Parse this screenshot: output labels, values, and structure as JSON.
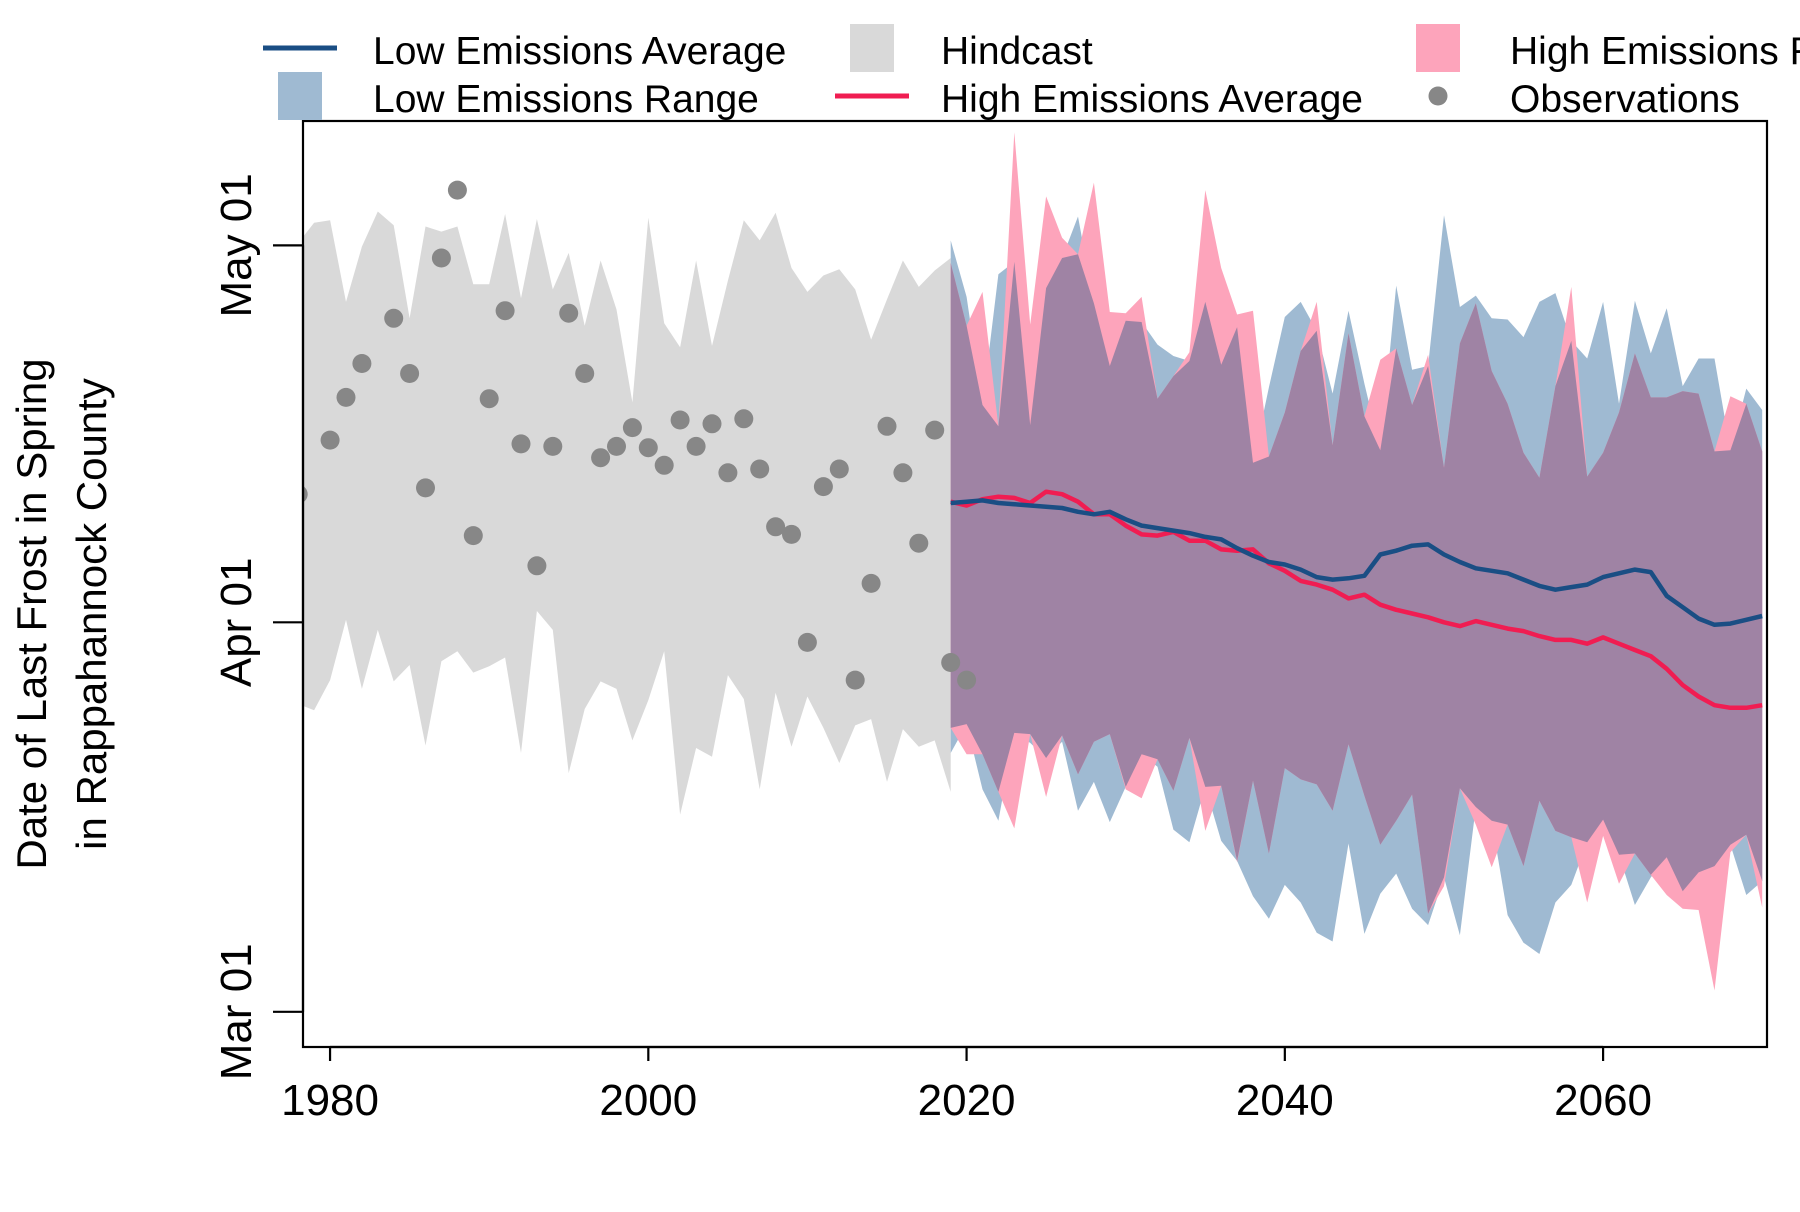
{
  "chart_data": {
    "type": "area",
    "title": "",
    "ylabel": [
      "Date of Last Frost in Spring",
      "in Rappahannock County"
    ],
    "xlabel": "",
    "xlim": [
      1978.3,
      2070.3
    ],
    "ylim": [
      57.2,
      130.9
    ],
    "x_ticks": [
      1980,
      2000,
      2020,
      2040,
      2060
    ],
    "x_tick_labels": [
      "1980",
      "2000",
      "2020",
      "2040",
      "2060"
    ],
    "y_ticks": [
      60,
      91,
      121
    ],
    "y_tick_labels": [
      "Mar 01",
      "Apr 01",
      "May 01"
    ],
    "y_units": "day of year",
    "legend": {
      "placement": "top, outside plot area",
      "items": [
        {
          "key": "low_avg",
          "label": "Low Emissions Average",
          "symbol": "line",
          "color": "#1a4e84"
        },
        {
          "key": "low_range",
          "label": "Low Emissions Range",
          "symbol": "area",
          "color": "#9fbad2"
        },
        {
          "key": "hindcast",
          "label": "Hindcast",
          "symbol": "area",
          "color": "#d9d9d9"
        },
        {
          "key": "high_avg",
          "label": "High Emissions Average",
          "symbol": "line",
          "color": "#f01d52"
        },
        {
          "key": "high_range",
          "label": "High Emissions Range",
          "symbol": "area",
          "color": "#fda4bb"
        },
        {
          "key": "obs",
          "label": "Observations",
          "symbol": "point",
          "color": "#878787"
        }
      ]
    },
    "colors": {
      "hindcast": "#d9d9d9",
      "low_range": "#9fbad2",
      "high_range": "#fda4bb",
      "overlap": "#9f83a4",
      "low_avg": "#1a4e84",
      "high_avg": "#f01d52",
      "obs": "#878787"
    },
    "hindcast": {
      "x": [
        1978,
        1979,
        1980,
        1981,
        1982,
        1983,
        1984,
        1985,
        1986,
        1987,
        1988,
        1989,
        1990,
        1991,
        1992,
        1993,
        1994,
        1995,
        1996,
        1997,
        1998,
        1999,
        2000,
        2001,
        2002,
        2003,
        2004,
        2005,
        2006,
        2007,
        2008,
        2009,
        2010,
        2011,
        2012,
        2013,
        2014,
        2015,
        2016,
        2017,
        2018,
        2019
      ],
      "upper": [
        121.2,
        122.8,
        123.0,
        116.5,
        120.9,
        123.7,
        122.6,
        115.2,
        122.5,
        122.1,
        122.5,
        117.9,
        117.9,
        123.5,
        116.8,
        123.1,
        117.5,
        120.4,
        114.6,
        119.8,
        115.9,
        108.5,
        123.2,
        114.8,
        112.9,
        119.8,
        113.0,
        118.2,
        123.0,
        121.4,
        123.6,
        119.2,
        117.3,
        118.6,
        119.1,
        117.5,
        113.5,
        116.7,
        119.8,
        117.7,
        119.0,
        120.0
      ],
      "lower": [
        84.5,
        84.0,
        86.4,
        91.2,
        85.7,
        90.4,
        86.3,
        87.6,
        81.2,
        87.9,
        88.7,
        87.0,
        87.5,
        88.2,
        80.6,
        91.9,
        90.4,
        79.0,
        84.1,
        86.3,
        85.7,
        81.6,
        84.8,
        88.7,
        75.7,
        81.0,
        80.3,
        86.8,
        84.9,
        77.7,
        85.4,
        81.1,
        85.1,
        82.6,
        79.8,
        82.8,
        83.3,
        78.3,
        82.5,
        81.1,
        81.6,
        77.5
      ]
    },
    "low_range": {
      "x": [
        2019,
        2020,
        2021,
        2022,
        2023,
        2024,
        2025,
        2026,
        2027,
        2028,
        2029,
        2030,
        2031,
        2032,
        2033,
        2034,
        2035,
        2036,
        2037,
        2038,
        2039,
        2040,
        2041,
        2042,
        2043,
        2044,
        2045,
        2046,
        2047,
        2048,
        2049,
        2050,
        2051,
        2052,
        2053,
        2054,
        2055,
        2056,
        2057,
        2058,
        2059,
        2060,
        2061,
        2062,
        2063,
        2064,
        2065,
        2066,
        2067,
        2068,
        2069,
        2070
      ],
      "upper": [
        121.4,
        116.9,
        108.3,
        118.7,
        119.7,
        106.7,
        117.6,
        120.0,
        123.3,
        116.4,
        111.4,
        115.0,
        114.9,
        113.1,
        112.2,
        111.8,
        116.5,
        111.5,
        114.5,
        103.7,
        109.7,
        115.3,
        116.5,
        114.2,
        109.2,
        115.8,
        110.0,
        104.7,
        117.8,
        111.1,
        111.4,
        123.4,
        116.1,
        117.0,
        115.2,
        115.1,
        113.7,
        116.5,
        117.2,
        113.4,
        112.0,
        116.5,
        108.4,
        116.6,
        112.4,
        116.0,
        109.8,
        112.0,
        112.0,
        104.7,
        109.6,
        107.9
      ],
      "lower": [
        80.6,
        82.9,
        77.7,
        75.2,
        82.2,
        81.4,
        80.2,
        81.5,
        76.0,
        78.3,
        75.1,
        77.9,
        80.5,
        79.5,
        74.5,
        73.5,
        77.9,
        73.6,
        72.0,
        69.2,
        67.4,
        70.1,
        68.7,
        66.3,
        65.6,
        73.4,
        66.2,
        69.4,
        71.0,
        68.2,
        66.9,
        70.7,
        66.1,
        76.3,
        75.2,
        67.7,
        65.5,
        64.6,
        68.7,
        70.1,
        73.5,
        75.3,
        72.5,
        68.5,
        70.7,
        72.3,
        69.6,
        71.1,
        71.6,
        73.3,
        69.3,
        70.4
      ]
    },
    "high_range": {
      "x": [
        2019,
        2020,
        2021,
        2022,
        2023,
        2024,
        2025,
        2026,
        2027,
        2028,
        2029,
        2030,
        2031,
        2032,
        2033,
        2034,
        2035,
        2036,
        2037,
        2038,
        2039,
        2040,
        2041,
        2042,
        2043,
        2044,
        2045,
        2046,
        2047,
        2048,
        2049,
        2050,
        2051,
        2052,
        2053,
        2054,
        2055,
        2056,
        2057,
        2058,
        2059,
        2060,
        2061,
        2062,
        2063,
        2064,
        2065,
        2066,
        2067,
        2068,
        2069,
        2070
      ],
      "upper": [
        119.6,
        114.6,
        117.3,
        106.6,
        130.0,
        114.7,
        124.9,
        121.6,
        120.3,
        126.0,
        115.7,
        115.6,
        116.9,
        108.8,
        110.6,
        112.5,
        125.4,
        119.2,
        115.5,
        115.8,
        104.2,
        107.7,
        112.6,
        116.5,
        105.1,
        114.0,
        107.4,
        111.9,
        112.8,
        108.3,
        112.3,
        103.3,
        113.2,
        116.4,
        111.0,
        108.4,
        104.5,
        102.5,
        109.8,
        117.7,
        102.6,
        104.5,
        107.7,
        112.4,
        108.9,
        108.9,
        109.4,
        109.2,
        104.6,
        109.0,
        108.4,
        104.6
      ],
      "lower": [
        82.6,
        80.5,
        80.5,
        77.5,
        74.6,
        82.1,
        77.1,
        82.0,
        78.9,
        81.5,
        82.1,
        77.7,
        77.0,
        80.1,
        77.6,
        81.8,
        74.4,
        78.0,
        71.9,
        78.4,
        72.6,
        79.4,
        78.5,
        78.1,
        76.0,
        81.3,
        77.2,
        73.3,
        75.2,
        77.3,
        67.8,
        70.0,
        77.8,
        74.9,
        71.5,
        74.9,
        71.6,
        76.8,
        74.4,
        73.9,
        68.7,
        74.0,
        70.2,
        72.6,
        70.9,
        69.3,
        68.2,
        68.1,
        61.7,
        72.7,
        74.1,
        68.3
      ]
    },
    "low_avg": {
      "x": [
        2019,
        2020,
        2021,
        2022,
        2023,
        2024,
        2025,
        2026,
        2027,
        2028,
        2029,
        2030,
        2031,
        2032,
        2033,
        2034,
        2035,
        2036,
        2037,
        2038,
        2039,
        2040,
        2041,
        2042,
        2043,
        2044,
        2045,
        2046,
        2047,
        2048,
        2049,
        2050,
        2051,
        2052,
        2053,
        2054,
        2055,
        2056,
        2057,
        2058,
        2059,
        2060,
        2061,
        2062,
        2063,
        2064,
        2065,
        2066,
        2067,
        2068,
        2069,
        2070
      ],
      "values": [
        100.5,
        100.6,
        100.7,
        100.5,
        100.4,
        100.3,
        100.2,
        100.1,
        99.8,
        99.6,
        99.8,
        99.2,
        98.7,
        98.5,
        98.3,
        98.1,
        97.8,
        97.6,
        96.9,
        96.3,
        95.8,
        95.6,
        95.2,
        94.6,
        94.4,
        94.5,
        94.7,
        96.4,
        96.7,
        97.1,
        97.2,
        96.4,
        95.8,
        95.3,
        95.1,
        94.9,
        94.4,
        93.9,
        93.6,
        93.8,
        94.0,
        94.6,
        94.9,
        95.2,
        95.0,
        93.1,
        92.2,
        91.3,
        90.8,
        90.9,
        91.2,
        91.5
      ]
    },
    "high_avg": {
      "x": [
        2019,
        2020,
        2021,
        2022,
        2023,
        2024,
        2025,
        2026,
        2027,
        2028,
        2029,
        2030,
        2031,
        2032,
        2033,
        2034,
        2035,
        2036,
        2037,
        2038,
        2039,
        2040,
        2041,
        2042,
        2043,
        2044,
        2045,
        2046,
        2047,
        2048,
        2049,
        2050,
        2051,
        2052,
        2053,
        2054,
        2055,
        2056,
        2057,
        2058,
        2059,
        2060,
        2061,
        2062,
        2063,
        2064,
        2065,
        2066,
        2067,
        2068,
        2069,
        2070
      ],
      "values": [
        100.6,
        100.3,
        100.8,
        101.0,
        100.9,
        100.5,
        101.4,
        101.2,
        100.6,
        99.6,
        99.6,
        98.7,
        98.0,
        97.9,
        98.2,
        97.5,
        97.5,
        96.8,
        96.7,
        96.8,
        95.7,
        95.1,
        94.3,
        94.0,
        93.6,
        92.9,
        93.2,
        92.4,
        92.0,
        91.7,
        91.4,
        91.0,
        90.7,
        91.1,
        90.8,
        90.5,
        90.3,
        89.9,
        89.6,
        89.6,
        89.3,
        89.8,
        89.3,
        88.8,
        88.3,
        87.3,
        86.0,
        85.1,
        84.4,
        84.2,
        84.2,
        84.4
      ]
    },
    "observations": {
      "x": [
        1978,
        1980,
        1981,
        1982,
        1984,
        1985,
        1986,
        1987,
        1988,
        1989,
        1990,
        1991,
        1992,
        1993,
        1994,
        1995,
        1996,
        1997,
        1998,
        1999,
        2000,
        2001,
        2002,
        2003,
        2004,
        2005,
        2006,
        2007,
        2008,
        2009,
        2010,
        2011,
        2012,
        2013,
        2014,
        2015,
        2016,
        2017,
        2018,
        2019,
        2020
      ],
      "values": [
        101.2,
        105.5,
        108.9,
        111.6,
        115.2,
        110.8,
        101.7,
        120.0,
        125.4,
        97.9,
        108.8,
        115.8,
        105.2,
        95.5,
        105.0,
        115.6,
        110.8,
        104.1,
        105.0,
        106.5,
        104.9,
        103.5,
        107.1,
        105.0,
        106.8,
        102.9,
        107.2,
        103.2,
        98.6,
        98.0,
        89.4,
        101.8,
        103.2,
        86.4,
        94.1,
        106.6,
        102.9,
        97.3,
        106.3,
        87.8,
        86.4
      ]
    }
  }
}
